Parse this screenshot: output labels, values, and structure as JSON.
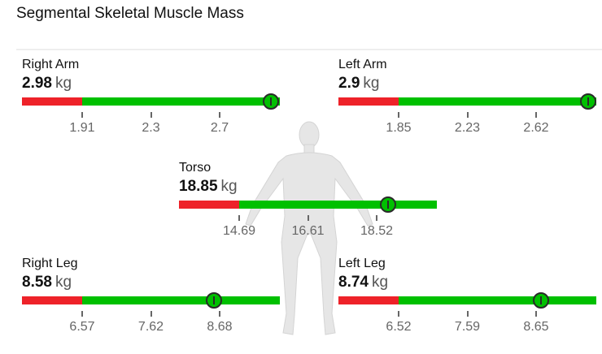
{
  "title": "Segmental Skeletal Muscle Mass",
  "colors": {
    "below": "#ee2229",
    "normal": "#00c000",
    "marker_border": "#2a2a2a"
  },
  "segments": [
    {
      "key": "right_arm",
      "label": "Right Arm",
      "value": "2.98",
      "unit": "kg",
      "ticks": [
        "1.91",
        "2.3",
        "2.7"
      ]
    },
    {
      "key": "left_arm",
      "label": "Left Arm",
      "value": "2.9",
      "unit": "kg",
      "ticks": [
        "1.85",
        "2.23",
        "2.62"
      ]
    },
    {
      "key": "torso",
      "label": "Torso",
      "value": "18.85",
      "unit": "kg",
      "ticks": [
        "14.69",
        "16.61",
        "18.52"
      ]
    },
    {
      "key": "right_leg",
      "label": "Right Leg",
      "value": "8.58",
      "unit": "kg",
      "ticks": [
        "6.57",
        "7.62",
        "8.68"
      ]
    },
    {
      "key": "left_leg",
      "label": "Left Leg",
      "value": "8.74",
      "unit": "kg",
      "ticks": [
        "6.52",
        "7.59",
        "8.65"
      ]
    }
  ]
}
